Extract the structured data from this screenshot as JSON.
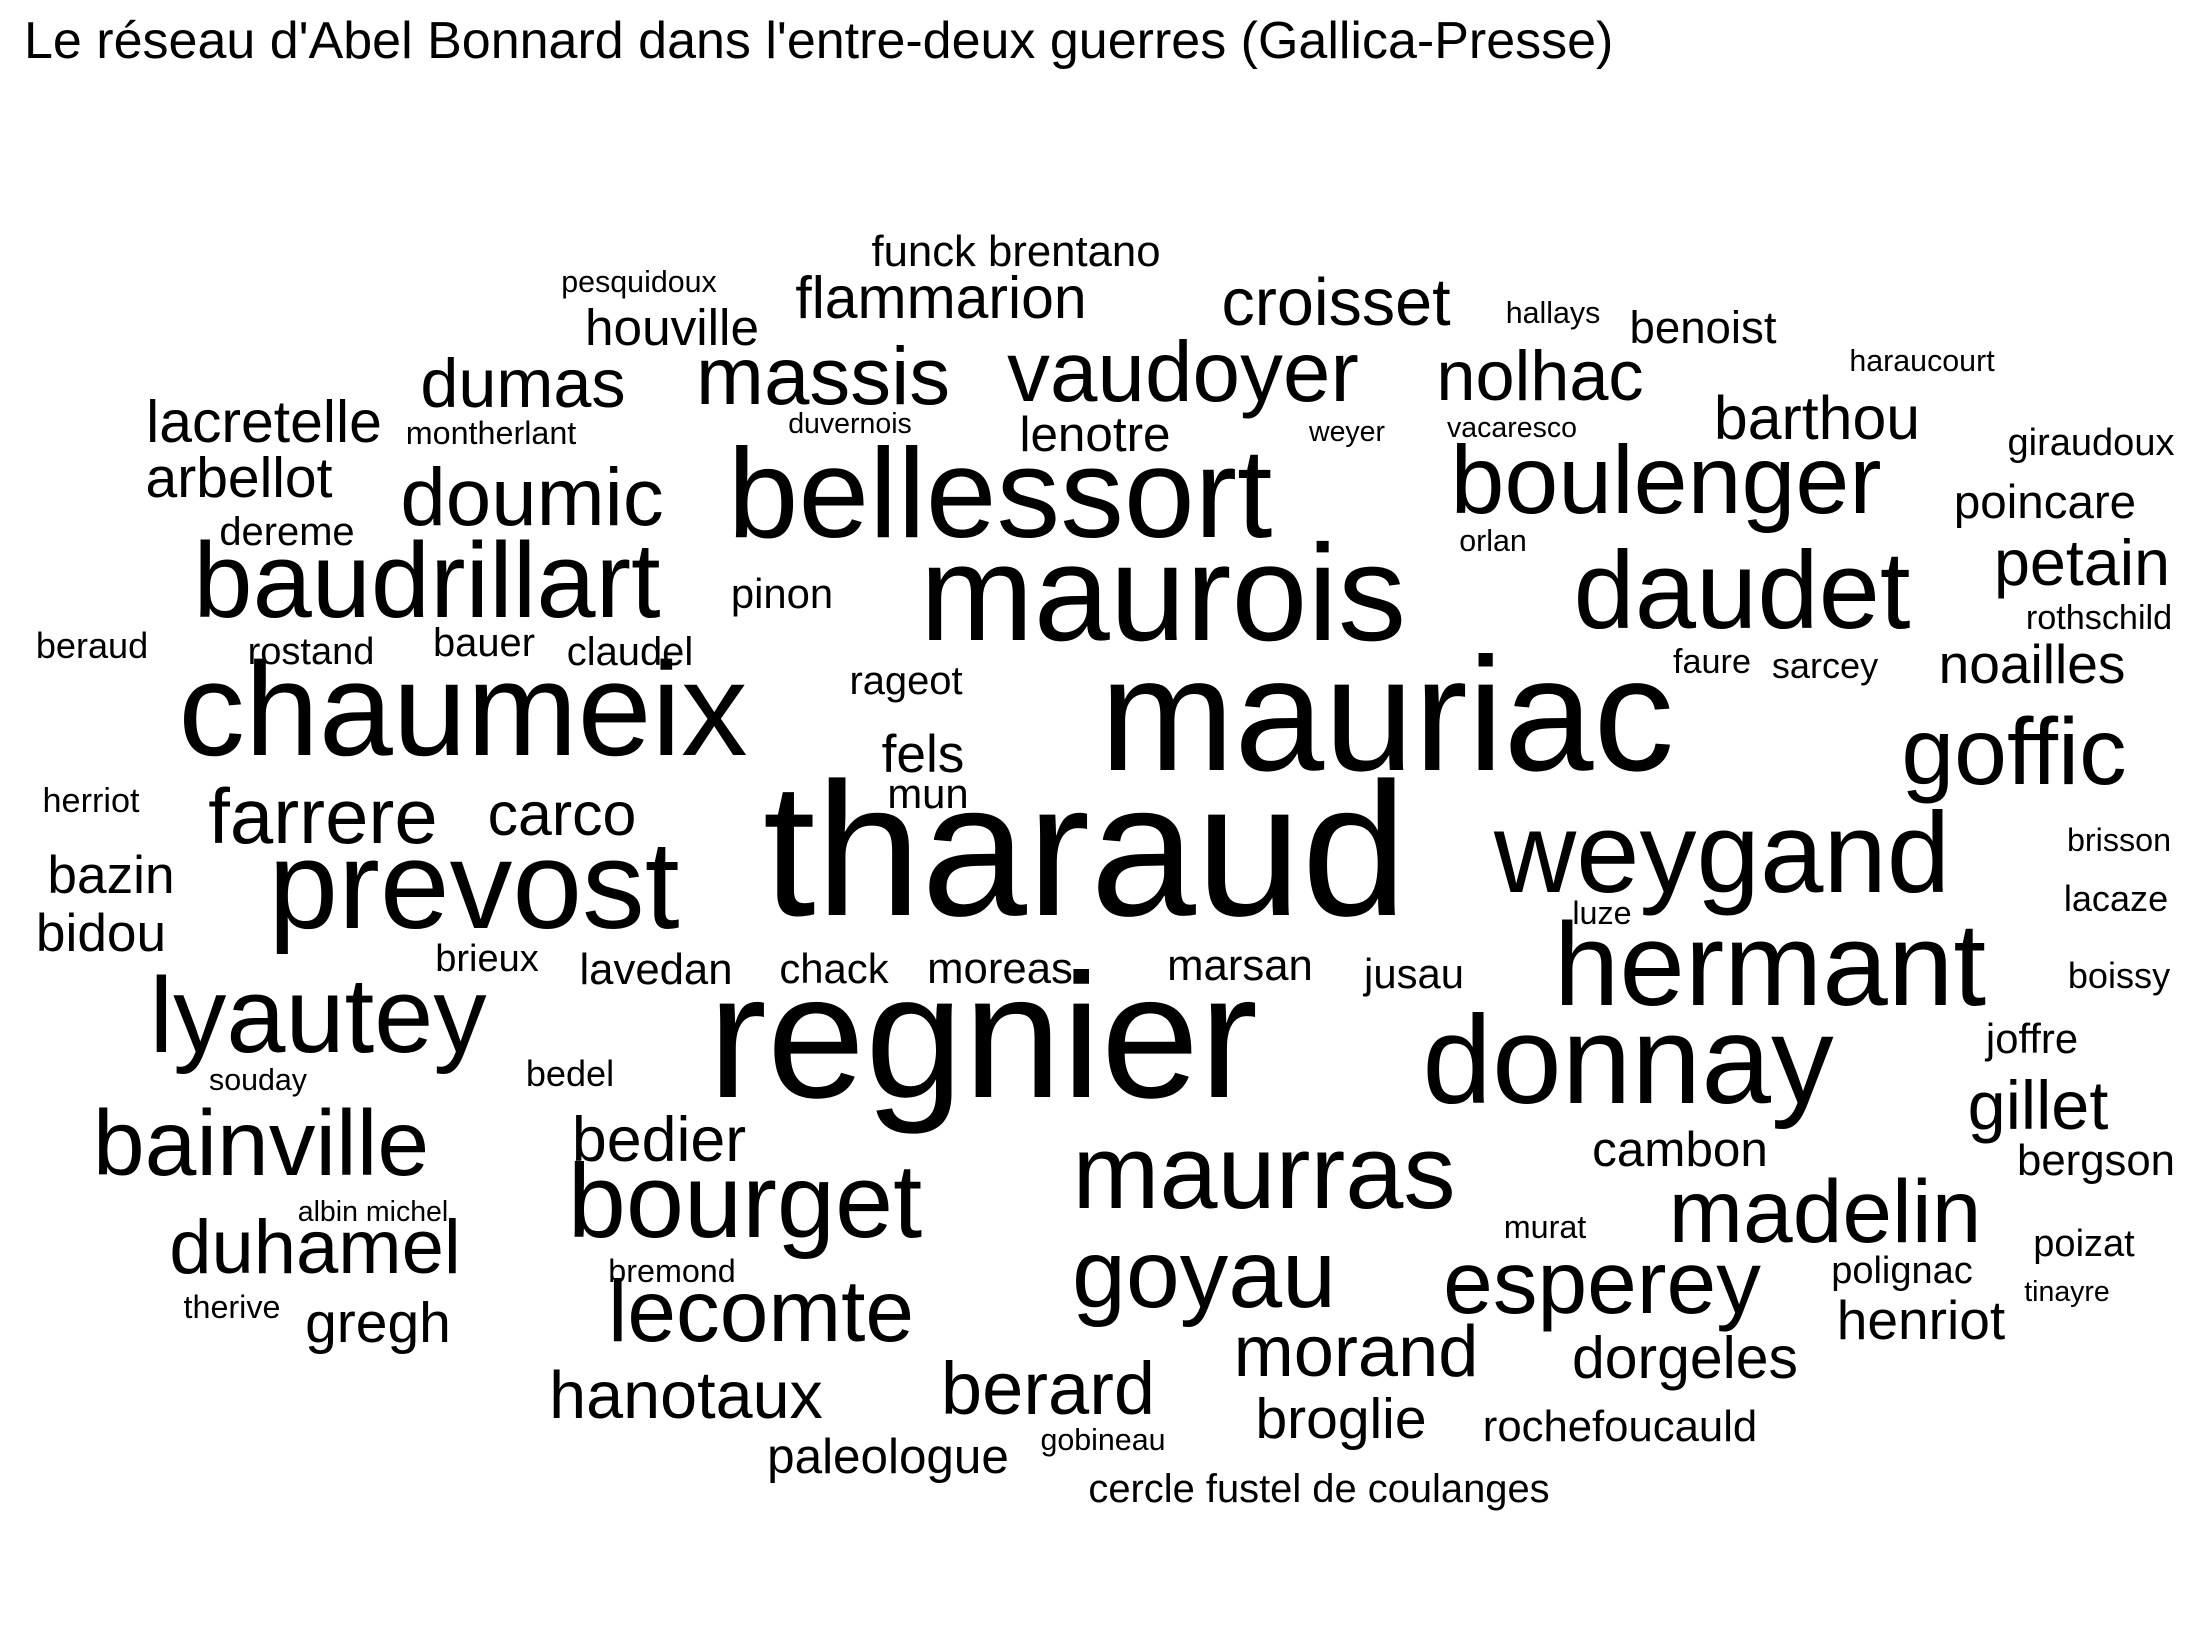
{
  "title": "Le réseau d'Abel Bonnard dans l'entre-deux guerres (Gallica-Presse)",
  "chart_data": {
    "type": "wordcloud",
    "title": "Le réseau d'Abel Bonnard dans l'entre-deux guerres (Gallica-Presse)",
    "text_color": "#000000",
    "background_color": "#ffffff",
    "words": [
      {
        "text": "tharaud",
        "weight": 100
      },
      {
        "text": "regnier",
        "weight": 93
      },
      {
        "text": "mauriac",
        "weight": 85
      },
      {
        "text": "maurois",
        "weight": 72
      },
      {
        "text": "chaumeix",
        "weight": 70
      },
      {
        "text": "bellessort",
        "weight": 67
      },
      {
        "text": "donnay",
        "weight": 66
      },
      {
        "text": "prevost",
        "weight": 66
      },
      {
        "text": "hermant",
        "weight": 62
      },
      {
        "text": "weygand",
        "weight": 60
      },
      {
        "text": "daudet",
        "weight": 58
      },
      {
        "text": "baudrillart",
        "weight": 56
      },
      {
        "text": "lyautey",
        "weight": 56
      },
      {
        "text": "bourget",
        "weight": 55
      },
      {
        "text": "maurras",
        "weight": 55
      },
      {
        "text": "goyau",
        "weight": 51
      },
      {
        "text": "boulenger",
        "weight": 51
      },
      {
        "text": "goffic",
        "weight": 50
      },
      {
        "text": "bainville",
        "weight": 49
      },
      {
        "text": "esperey",
        "weight": 47
      },
      {
        "text": "madelin",
        "weight": 47
      },
      {
        "text": "lecomte",
        "weight": 46
      },
      {
        "text": "vaudoyer",
        "weight": 45
      },
      {
        "text": "massis",
        "weight": 43
      },
      {
        "text": "doumic",
        "weight": 43
      },
      {
        "text": "farrere",
        "weight": 41
      },
      {
        "text": "duhamel",
        "weight": 40
      },
      {
        "text": "berard",
        "weight": 39
      },
      {
        "text": "morand",
        "weight": 38
      },
      {
        "text": "nolhac",
        "weight": 37
      },
      {
        "text": "dumas",
        "weight": 36
      },
      {
        "text": "gillet",
        "weight": 36
      },
      {
        "text": "croisset",
        "weight": 35
      },
      {
        "text": "hanotaux",
        "weight": 35
      },
      {
        "text": "petain",
        "weight": 34
      },
      {
        "text": "bedier",
        "weight": 33
      },
      {
        "text": "barthou",
        "weight": 32
      },
      {
        "text": "carco",
        "weight": 32
      },
      {
        "text": "flammarion",
        "weight": 31
      },
      {
        "text": "lacretelle",
        "weight": 31
      },
      {
        "text": "dorgeles",
        "weight": 31
      },
      {
        "text": "arbellot",
        "weight": 30
      },
      {
        "text": "gregh",
        "weight": 30
      },
      {
        "text": "broglie",
        "weight": 30
      },
      {
        "text": "noailles",
        "weight": 29
      },
      {
        "text": "henriot",
        "weight": 29
      },
      {
        "text": "bazin",
        "weight": 28
      },
      {
        "text": "fels",
        "weight": 28
      },
      {
        "text": "bidou",
        "weight": 28
      },
      {
        "text": "houville",
        "weight": 27
      },
      {
        "text": "lenotre",
        "weight": 26
      },
      {
        "text": "paleologue",
        "weight": 26
      },
      {
        "text": "cambon",
        "weight": 26
      },
      {
        "text": "poincare",
        "weight": 25
      },
      {
        "text": "benoist",
        "weight": 24
      },
      {
        "text": "funck brentano",
        "weight": 23
      },
      {
        "text": "lavedan",
        "weight": 23
      },
      {
        "text": "moreas",
        "weight": 23
      },
      {
        "text": "marsan",
        "weight": 23
      },
      {
        "text": "bergson",
        "weight": 23
      },
      {
        "text": "rochefoucauld",
        "weight": 23
      },
      {
        "text": "pinon",
        "weight": 22
      },
      {
        "text": "chack",
        "weight": 22
      },
      {
        "text": "jusau",
        "weight": 22
      },
      {
        "text": "joffre",
        "weight": 22
      },
      {
        "text": "mun",
        "weight": 22
      },
      {
        "text": "claudel",
        "weight": 21
      },
      {
        "text": "dereme",
        "weight": 21
      },
      {
        "text": "bauer",
        "weight": 21
      },
      {
        "text": "rageot",
        "weight": 21
      },
      {
        "text": "cercle fustel de coulanges",
        "weight": 21
      },
      {
        "text": "giraudoux",
        "weight": 20
      },
      {
        "text": "rostand",
        "weight": 20
      },
      {
        "text": "brieux",
        "weight": 20
      },
      {
        "text": "polignac",
        "weight": 20
      },
      {
        "text": "poizat",
        "weight": 20
      },
      {
        "text": "boissy",
        "weight": 19
      },
      {
        "text": "lacaze",
        "weight": 19
      },
      {
        "text": "beraud",
        "weight": 19
      },
      {
        "text": "bedel",
        "weight": 19
      },
      {
        "text": "sarcey",
        "weight": 19
      },
      {
        "text": "faure",
        "weight": 18
      },
      {
        "text": "rothschild",
        "weight": 18
      },
      {
        "text": "herriot",
        "weight": 18
      },
      {
        "text": "montherlant",
        "weight": 17
      },
      {
        "text": "luze",
        "weight": 17
      },
      {
        "text": "brisson",
        "weight": 17
      },
      {
        "text": "bremond",
        "weight": 17
      },
      {
        "text": "murat",
        "weight": 17
      },
      {
        "text": "therive",
        "weight": 17
      },
      {
        "text": "gobineau",
        "weight": 16
      },
      {
        "text": "pesquidoux",
        "weight": 16
      },
      {
        "text": "hallays",
        "weight": 16
      },
      {
        "text": "haraucourt",
        "weight": 16
      },
      {
        "text": "orlan",
        "weight": 16
      },
      {
        "text": "souday",
        "weight": 16
      },
      {
        "text": "vacaresco",
        "weight": 15
      },
      {
        "text": "weyer",
        "weight": 15
      },
      {
        "text": "duvernois",
        "weight": 15
      },
      {
        "text": "albin michel",
        "weight": 15
      },
      {
        "text": "tinayre",
        "weight": 15
      }
    ]
  }
}
